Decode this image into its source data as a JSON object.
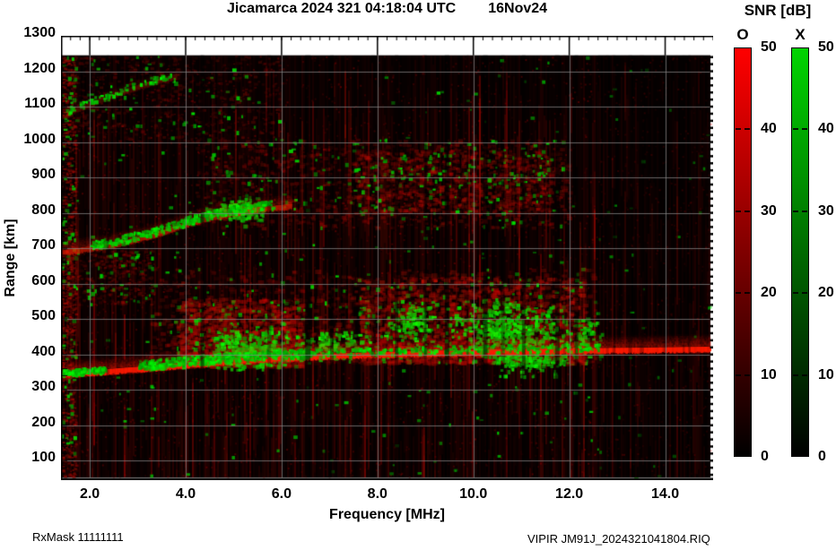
{
  "title": {
    "main": "Jicamarca 2024 321 04:18:04 UTC",
    "date": "16Nov24"
  },
  "footer": {
    "left": "RxMask 11111111",
    "right": "VIPIR  JM91J_2024321041804.RIQ"
  },
  "axes": {
    "x": {
      "label": "Frequency [MHz]",
      "tick_labels": [
        "2.0",
        "4.0",
        "6.0",
        "8.0",
        "10.0",
        "12.0",
        "14.0"
      ],
      "tick_values": [
        2,
        4,
        6,
        8,
        10,
        12,
        14
      ]
    },
    "y": {
      "label": "Range [km]",
      "tick_labels": [
        "100",
        "200",
        "300",
        "400",
        "500",
        "600",
        "700",
        "800",
        "900",
        "1000",
        "1100",
        "1200",
        "1300"
      ],
      "tick_values": [
        100,
        200,
        300,
        400,
        500,
        600,
        700,
        800,
        900,
        1000,
        1100,
        1200,
        1300
      ]
    }
  },
  "colorbar": {
    "title": "SNR [dB]",
    "min": 0,
    "max": 50,
    "tick_labels": [
      "0",
      "10",
      "20",
      "30",
      "40",
      "50"
    ],
    "tick_values": [
      0,
      10,
      20,
      30,
      40,
      50
    ],
    "bars": [
      {
        "label": "O",
        "color": "#ff0000"
      },
      {
        "label": "X",
        "color": "#00d400"
      }
    ]
  },
  "colors": {
    "background": "#000000",
    "grid": "#878787",
    "frame": "#000000",
    "o_mode": "#ff0000",
    "x_mode": "#00cc00"
  },
  "chart_data": {
    "type": "heatmap",
    "description": "VIPIR HF ionogram from Jicamarca, day 321 of 2024 (16Nov24) 04:18:04 UTC. SNR in dB, 0-50, for O-mode (red) and X-mode (green) echoes versus sounding frequency and virtual range. Shows a strong spread-F layer near 350-420 km rising with frequency, a diffuse spread region 380-640 km between roughly 3.5 and 12.5 MHz with dense X-mode scatter, a second-hop trace rising from 690 km at 1.5 MHz to about 820 km near 5.5 MHz, diffuse second-hop spread 760-1010 km, and a faint upper multiple near 1100-1190 km at low frequencies.",
    "x_axis": {
      "label": "Frequency [MHz]",
      "min": 1.4,
      "max": 15.0,
      "major_ticks": [
        2,
        4,
        6,
        8,
        10,
        12,
        14
      ],
      "minor_step": 0.2
    },
    "y_axis": {
      "label": "Range [km]",
      "min": 45,
      "max": 1300,
      "major_ticks": [
        100,
        200,
        300,
        400,
        500,
        600,
        700,
        800,
        900,
        1000,
        1100,
        1200,
        1300
      ],
      "minor_step": 20,
      "data_top": 1245
    },
    "snr_scale": {
      "min": 0,
      "max": 50,
      "units": "dB",
      "o_mode_color": "red",
      "x_mode_color": "green"
    },
    "traces": [
      {
        "name": "f-layer-main-echo",
        "points": [
          [
            1.4,
            343
          ],
          [
            2.0,
            349
          ],
          [
            2.6,
            355
          ],
          [
            3.2,
            361
          ],
          [
            4.0,
            371
          ],
          [
            5.0,
            382
          ],
          [
            6.0,
            390
          ],
          [
            7.0,
            396
          ],
          [
            8.0,
            400
          ],
          [
            9.0,
            404
          ],
          [
            10.0,
            406
          ],
          [
            11.0,
            409
          ],
          [
            12.0,
            411
          ],
          [
            13.5,
            413
          ],
          [
            15.0,
            416
          ]
        ],
        "core_alpha": 0.95,
        "glow_km": 38,
        "glow_alpha": 0.4,
        "color": [
          255,
          25,
          0
        ],
        "green_ranges": [
          [
            1.4,
            2.3,
            130,
            16
          ],
          [
            3.0,
            6.6,
            430,
            26
          ],
          [
            6.6,
            12.6,
            260,
            22
          ]
        ]
      },
      {
        "name": "second-hop-echo",
        "points": [
          [
            1.4,
            688
          ],
          [
            2.0,
            700
          ],
          [
            2.5,
            711
          ],
          [
            3.0,
            726
          ],
          [
            3.5,
            745
          ],
          [
            4.0,
            768
          ],
          [
            4.5,
            786
          ],
          [
            5.0,
            800
          ],
          [
            5.5,
            810
          ],
          [
            6.2,
            819
          ]
        ],
        "core_alpha": 0.5,
        "glow_km": 32,
        "glow_alpha": 0.3,
        "color": [
          235,
          30,
          0
        ],
        "green_ranges": [
          [
            2.0,
            5.8,
            300,
            24
          ]
        ]
      },
      {
        "name": "faint-upper-multiple",
        "points": [
          [
            1.4,
            1075
          ],
          [
            2.0,
            1108
          ],
          [
            2.8,
            1148
          ],
          [
            3.8,
            1188
          ]
        ],
        "core_alpha": 0.17,
        "glow_km": 20,
        "glow_alpha": 0.12,
        "color": [
          220,
          40,
          0
        ],
        "green_ranges": [
          [
            1.5,
            3.8,
            70,
            18
          ]
        ]
      }
    ],
    "spread_regions": [
      {
        "name": "left-edge-noise-column",
        "f": [
          1.4,
          1.7
        ],
        "km": [
          55,
          1245
        ],
        "n_red": 900,
        "red_alpha": 0.5,
        "size": [
          2,
          4
        ],
        "n_green": 70,
        "bias": 1.0
      },
      {
        "name": "f-spread-base",
        "f": [
          3.2,
          12.6
        ],
        "km": [
          378,
          645
        ],
        "n_red": 1400,
        "red_alpha": 0.3,
        "size": [
          3,
          7
        ],
        "n_green": 120,
        "bias": 1.5
      },
      {
        "name": "f-spread-left",
        "f": [
          3.8,
          6.4
        ],
        "km": [
          370,
          560
        ],
        "n_red": 1300,
        "red_alpha": 0.5,
        "size": [
          3,
          7
        ],
        "n_green": 120,
        "bias": 1.4
      },
      {
        "name": "f-spread-right",
        "f": [
          7.6,
          12.3
        ],
        "km": [
          380,
          620
        ],
        "n_red": 1800,
        "red_alpha": 0.5,
        "size": [
          3,
          7
        ],
        "n_green": 140,
        "bias": 1.3
      },
      {
        "name": "second-hop-spread",
        "f": [
          4.2,
          12.0
        ],
        "km": [
          760,
          1010
        ],
        "n_red": 1100,
        "red_alpha": 0.32,
        "size": [
          3,
          6
        ],
        "n_green": 150,
        "bias": 1.0
      },
      {
        "name": "second-hop-spread-right",
        "f": [
          7.5,
          11.6
        ],
        "km": [
          800,
          980
        ],
        "n_red": 800,
        "red_alpha": 0.4,
        "size": [
          3,
          6
        ],
        "n_green": 90,
        "bias": 1.0
      },
      {
        "name": "upper-left-noise",
        "f": [
          1.4,
          6.0
        ],
        "km": [
          1000,
          1245
        ],
        "n_red": 700,
        "red_alpha": 0.25,
        "size": [
          2,
          5
        ],
        "n_green": 60,
        "bias": 1.0
      },
      {
        "name": "mid-left-noise",
        "f": [
          1.4,
          3.3
        ],
        "km": [
          540,
          700
        ],
        "n_red": 400,
        "red_alpha": 0.3,
        "size": [
          2,
          5
        ],
        "n_green": 45,
        "bias": 1.0
      }
    ],
    "green_clusters": [
      {
        "f": [
          4.3,
          6.3
        ],
        "km": [
          352,
          480
        ],
        "n": 300
      },
      {
        "f": [
          9.4,
          12.0
        ],
        "km": [
          368,
          575
        ],
        "n": 430
      },
      {
        "f": [
          10.4,
          12.0
        ],
        "km": [
          338,
          432
        ],
        "n": 160
      },
      {
        "f": [
          4.6,
          5.7
        ],
        "km": [
          772,
          852
        ],
        "n": 130
      },
      {
        "f": [
          8.0,
          9.35
        ],
        "km": [
          415,
          565
        ],
        "n": 120
      },
      {
        "f": [
          6.3,
          7.9
        ],
        "km": [
          378,
          485
        ],
        "n": 95
      },
      {
        "f": [
          12.0,
          12.7
        ],
        "km": [
          380,
          520
        ],
        "n": 55
      }
    ],
    "rfi_notches": [
      {
        "f": 4.35,
        "w": 4,
        "a": 0.45
      },
      {
        "f": 6.55,
        "w": 6,
        "a": 0.55
      },
      {
        "f": 7.05,
        "w": 4,
        "a": 0.4
      },
      {
        "f": 8.4,
        "w": 4,
        "a": 0.45
      },
      {
        "f": 9.0,
        "w": 3,
        "a": 0.4
      },
      {
        "f": 9.45,
        "w": 5,
        "a": 0.55
      },
      {
        "f": 10.25,
        "w": 5,
        "a": 0.5
      },
      {
        "f": 11.05,
        "w": 4,
        "a": 0.45
      },
      {
        "f": 11.75,
        "w": 5,
        "a": 0.5
      },
      {
        "f": 12.15,
        "w": 4,
        "a": 0.45
      }
    ],
    "noise": {
      "stripe_step": 2,
      "bg_red_n": 2600,
      "bg_green_n": 280,
      "dim_above_f": 12.6,
      "dim_alpha": 0.3,
      "random_notches": 14
    }
  }
}
